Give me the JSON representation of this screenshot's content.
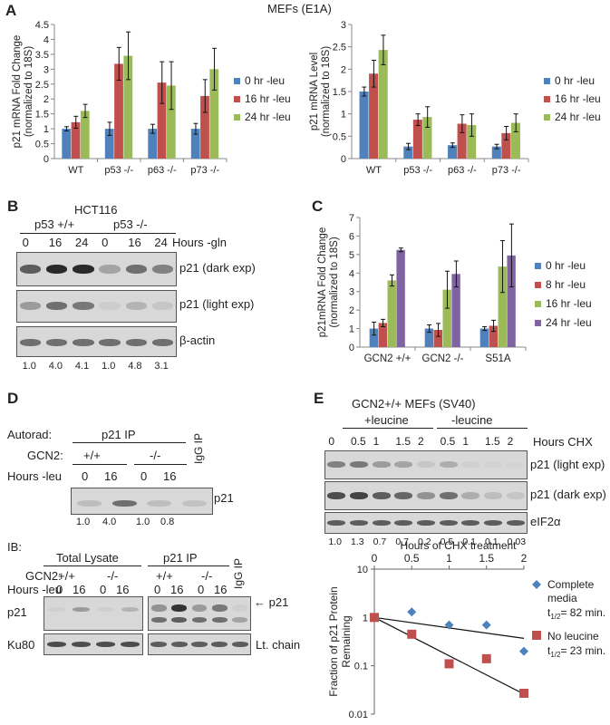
{
  "figure_title": "MEFs (E1A)",
  "panel_labels": {
    "A": "A",
    "B": "B",
    "C": "C",
    "D": "D",
    "E": "E"
  },
  "colors": {
    "blue": "#4f81bd",
    "red": "#c0504d",
    "green": "#9bbb59",
    "purple": "#8064a2",
    "diamond": "#4f81bd",
    "square": "#c0504d"
  },
  "chart_data": [
    {
      "type": "bar",
      "ylabel": "p21 mRNA Fold Change (normalized to 18S)",
      "ylim": [
        0,
        4.5
      ],
      "yticks": [
        "0",
        "0.5",
        "1",
        "1.5",
        "2",
        "2.5",
        "3",
        "3.5",
        "4",
        "4.5"
      ],
      "categories": [
        "WT",
        "p53 -/-",
        "p63 -/-",
        "p73 -/-"
      ],
      "series": [
        {
          "name": "0 hr -leu",
          "color": "#4f81bd",
          "values": [
            1.0,
            1.0,
            1.0,
            1.0
          ],
          "err": [
            0.07,
            0.22,
            0.15,
            0.18
          ]
        },
        {
          "name": "16 hr -leu",
          "color": "#c0504d",
          "values": [
            1.22,
            3.18,
            2.55,
            2.1
          ],
          "err": [
            0.2,
            0.55,
            0.7,
            0.55
          ]
        },
        {
          "name": "24 hr -leu",
          "color": "#9bbb59",
          "values": [
            1.6,
            3.45,
            2.45,
            3.0
          ],
          "err": [
            0.22,
            0.8,
            0.8,
            0.7
          ]
        }
      ]
    },
    {
      "type": "bar",
      "ylabel": "p21 mRNA Level (normalized to 18S)",
      "ylim": [
        0,
        3
      ],
      "yticks": [
        "0",
        "0.5",
        "1",
        "1.5",
        "2",
        "2.5",
        "3"
      ],
      "categories": [
        "WT",
        "p53 -/-",
        "p63 -/-",
        "p73 -/-"
      ],
      "series": [
        {
          "name": "0 hr -leu",
          "color": "#4f81bd",
          "values": [
            1.5,
            0.27,
            0.3,
            0.27
          ],
          "err": [
            0.1,
            0.07,
            0.05,
            0.05
          ]
        },
        {
          "name": "16 hr -leu",
          "color": "#c0504d",
          "values": [
            1.9,
            0.87,
            0.78,
            0.57
          ],
          "err": [
            0.3,
            0.13,
            0.2,
            0.15
          ]
        },
        {
          "name": "24 hr -leu",
          "color": "#9bbb59",
          "values": [
            2.43,
            0.93,
            0.75,
            0.8
          ],
          "err": [
            0.33,
            0.23,
            0.25,
            0.2
          ]
        }
      ]
    },
    {
      "type": "bar",
      "ylabel": "p21mRNA Fold Change (normalized to 18S)",
      "ylim": [
        0,
        7
      ],
      "yticks": [
        "0",
        "1",
        "2",
        "3",
        "4",
        "5",
        "6",
        "7"
      ],
      "categories": [
        "GCN2 +/+",
        "GCN2 -/-",
        "S51A"
      ],
      "series": [
        {
          "name": "0 hr -leu",
          "color": "#4f81bd",
          "values": [
            1.0,
            1.0,
            1.0
          ],
          "err": [
            0.35,
            0.2,
            0.1
          ]
        },
        {
          "name": "8 hr -leu",
          "color": "#c0504d",
          "values": [
            1.3,
            0.93,
            1.15
          ],
          "err": [
            0.2,
            0.35,
            0.3
          ]
        },
        {
          "name": "16 hr -leu",
          "color": "#9bbb59",
          "values": [
            3.6,
            3.1,
            4.35
          ],
          "err": [
            0.3,
            1.0,
            1.4
          ]
        },
        {
          "name": "24 hr -leu",
          "color": "#8064a2",
          "values": [
            5.25,
            3.95,
            4.95
          ],
          "err": [
            0.1,
            0.7,
            1.7
          ]
        }
      ]
    },
    {
      "type": "scatter",
      "xlabel": "Hours of CHX treatment",
      "ylabel": "Fraction of p21 Protein Remaining",
      "xticks": [
        "0",
        "0.5",
        "1",
        "1.5",
        "2"
      ],
      "yticks": [
        "10",
        "1",
        "0.1",
        "0.01"
      ],
      "ylim": [
        0.01,
        10
      ],
      "scale": "log",
      "series": [
        {
          "name": "Complete media",
          "marker": "diamond",
          "color": "#4f81bd",
          "x": [
            0,
            0.5,
            1,
            1.5,
            2
          ],
          "y": [
            1.0,
            1.3,
            0.7,
            0.7,
            0.2
          ],
          "fit": [
            1.0,
            0.37
          ]
        },
        {
          "name": "No leucine",
          "marker": "square",
          "color": "#c0504d",
          "x": [
            0,
            0.5,
            1,
            1.5,
            2
          ],
          "y": [
            1.0,
            0.45,
            0.11,
            0.14,
            0.027
          ],
          "fit": [
            1.0,
            0.026
          ]
        }
      ],
      "annotations": {
        "complete_line1": "Complete",
        "complete_line2": "media",
        "complete_half": "t",
        "complete_half_sub": "1/2",
        "complete_half_val": "= 82 min.",
        "noleu_line1": "No leucine",
        "noleu_half": "t",
        "noleu_half_sub": "1/2",
        "noleu_half_val": "= 23 min."
      }
    }
  ],
  "panelB": {
    "title": "HCT116",
    "group1": "p53 +/+",
    "group2": "p53 -/-",
    "hours": [
      "0",
      "16",
      "24",
      "0",
      "16",
      "24"
    ],
    "hours_label": "Hours -gln",
    "rows": [
      "p21 (dark exp)",
      "p21 (light exp)",
      "β-actin"
    ],
    "quant": [
      "1.0",
      "4.0",
      "4.1",
      "1.0",
      "4.8",
      "3.1"
    ],
    "dark": [
      0.7,
      1.0,
      1.0,
      0.3,
      0.6,
      0.5
    ],
    "light": [
      0.35,
      0.6,
      0.55,
      0.06,
      0.2,
      0.1
    ],
    "actin": [
      0.6,
      0.6,
      0.6,
      0.6,
      0.6,
      0.6
    ]
  },
  "panelD": {
    "autorad": "Autorad:",
    "ip_title": "p21 IP",
    "gcn2": "GCN2:",
    "wt": "+/+",
    "ko": "-/-",
    "hours": "Hours -leu",
    "h": [
      "0",
      "16",
      "0",
      "16"
    ],
    "igg": "IgG IP",
    "band_label": "p21",
    "quant": [
      "1.0",
      "4.0",
      "1.0",
      "0.8"
    ],
    "ib": "IB:",
    "total": "Total Lysate",
    "p21ip": "p21 IP",
    "p21": "p21",
    "ku80": "Ku80",
    "ltchain": "Lt. chain",
    "arrow_p21": "p21"
  },
  "panelE": {
    "title": "GCN2+/+ MEFs (SV40)",
    "plus": "+leucine",
    "minus": "-leucine",
    "hours": [
      "0",
      "0.5",
      "1",
      "1.5",
      "2",
      "0.5",
      "1",
      "1.5",
      "2"
    ],
    "hours_label": "Hours CHX",
    "rows": [
      "p21 (light exp)",
      "p21 (dark exp)",
      "eIF2α"
    ],
    "quant": [
      "1.0",
      "1.3",
      "0.7",
      "0.7",
      "0.2",
      "0.5",
      "0.1",
      "0.1",
      "0.03"
    ],
    "light": [
      0.5,
      0.55,
      0.35,
      0.3,
      0.1,
      0.25,
      0.05,
      0.03,
      0.02
    ],
    "dark": [
      0.8,
      0.85,
      0.7,
      0.65,
      0.4,
      0.6,
      0.25,
      0.15,
      0.1
    ],
    "eif": [
      0.7,
      0.7,
      0.7,
      0.7,
      0.7,
      0.7,
      0.7,
      0.7,
      0.7
    ]
  }
}
